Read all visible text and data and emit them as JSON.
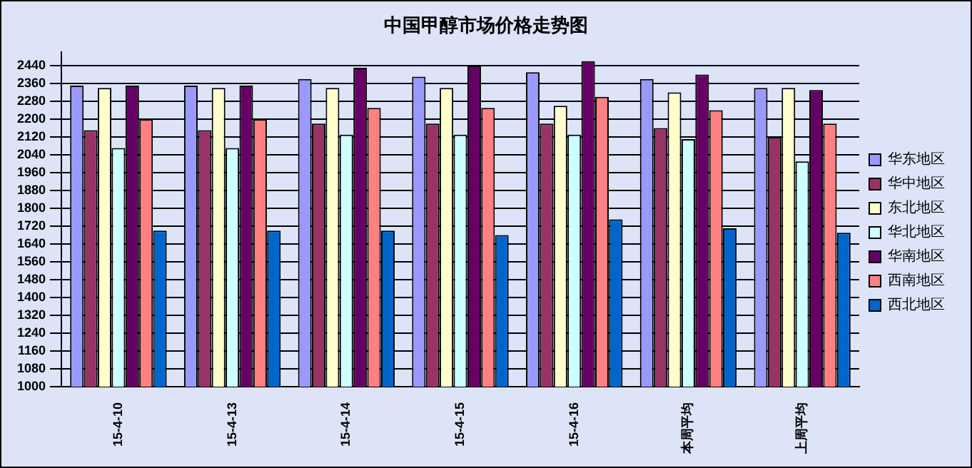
{
  "chart_data": {
    "type": "bar",
    "title": "中国甲醇市场价格走势图",
    "categories": [
      "15-4-10",
      "15-4-13",
      "15-4-14",
      "15-4-15",
      "15-4-16",
      "本周平均",
      "上周平均"
    ],
    "series": [
      {
        "name": "华东地区",
        "color": "#9999ff",
        "values": [
          2350,
          2350,
          2380,
          2390,
          2410,
          2380,
          2340
        ]
      },
      {
        "name": "华中地区",
        "color": "#993366",
        "values": [
          2150,
          2150,
          2180,
          2180,
          2180,
          2160,
          2120
        ]
      },
      {
        "name": "东北地区",
        "color": "#ffffcc",
        "values": [
          2340,
          2340,
          2340,
          2340,
          2260,
          2320,
          2340
        ]
      },
      {
        "name": "华北地区",
        "color": "#ccffff",
        "values": [
          2070,
          2070,
          2130,
          2130,
          2130,
          2110,
          2010
        ]
      },
      {
        "name": "华南地区",
        "color": "#660066",
        "values": [
          2350,
          2350,
          2430,
          2440,
          2460,
          2400,
          2330
        ]
      },
      {
        "name": "西南地区",
        "color": "#ff8080",
        "values": [
          2200,
          2200,
          2250,
          2250,
          2300,
          2240,
          2180
        ]
      },
      {
        "name": "西北地区",
        "color": "#0066cc",
        "values": [
          1700,
          1700,
          1700,
          1680,
          1750,
          1710,
          1690
        ]
      }
    ],
    "ylim": [
      1000,
      2500
    ],
    "yticks": [
      1000,
      1080,
      1160,
      1240,
      1320,
      1400,
      1480,
      1560,
      1640,
      1720,
      1800,
      1880,
      1960,
      2040,
      2120,
      2200,
      2280,
      2360,
      2440
    ],
    "grid": "y",
    "legend": "right"
  }
}
